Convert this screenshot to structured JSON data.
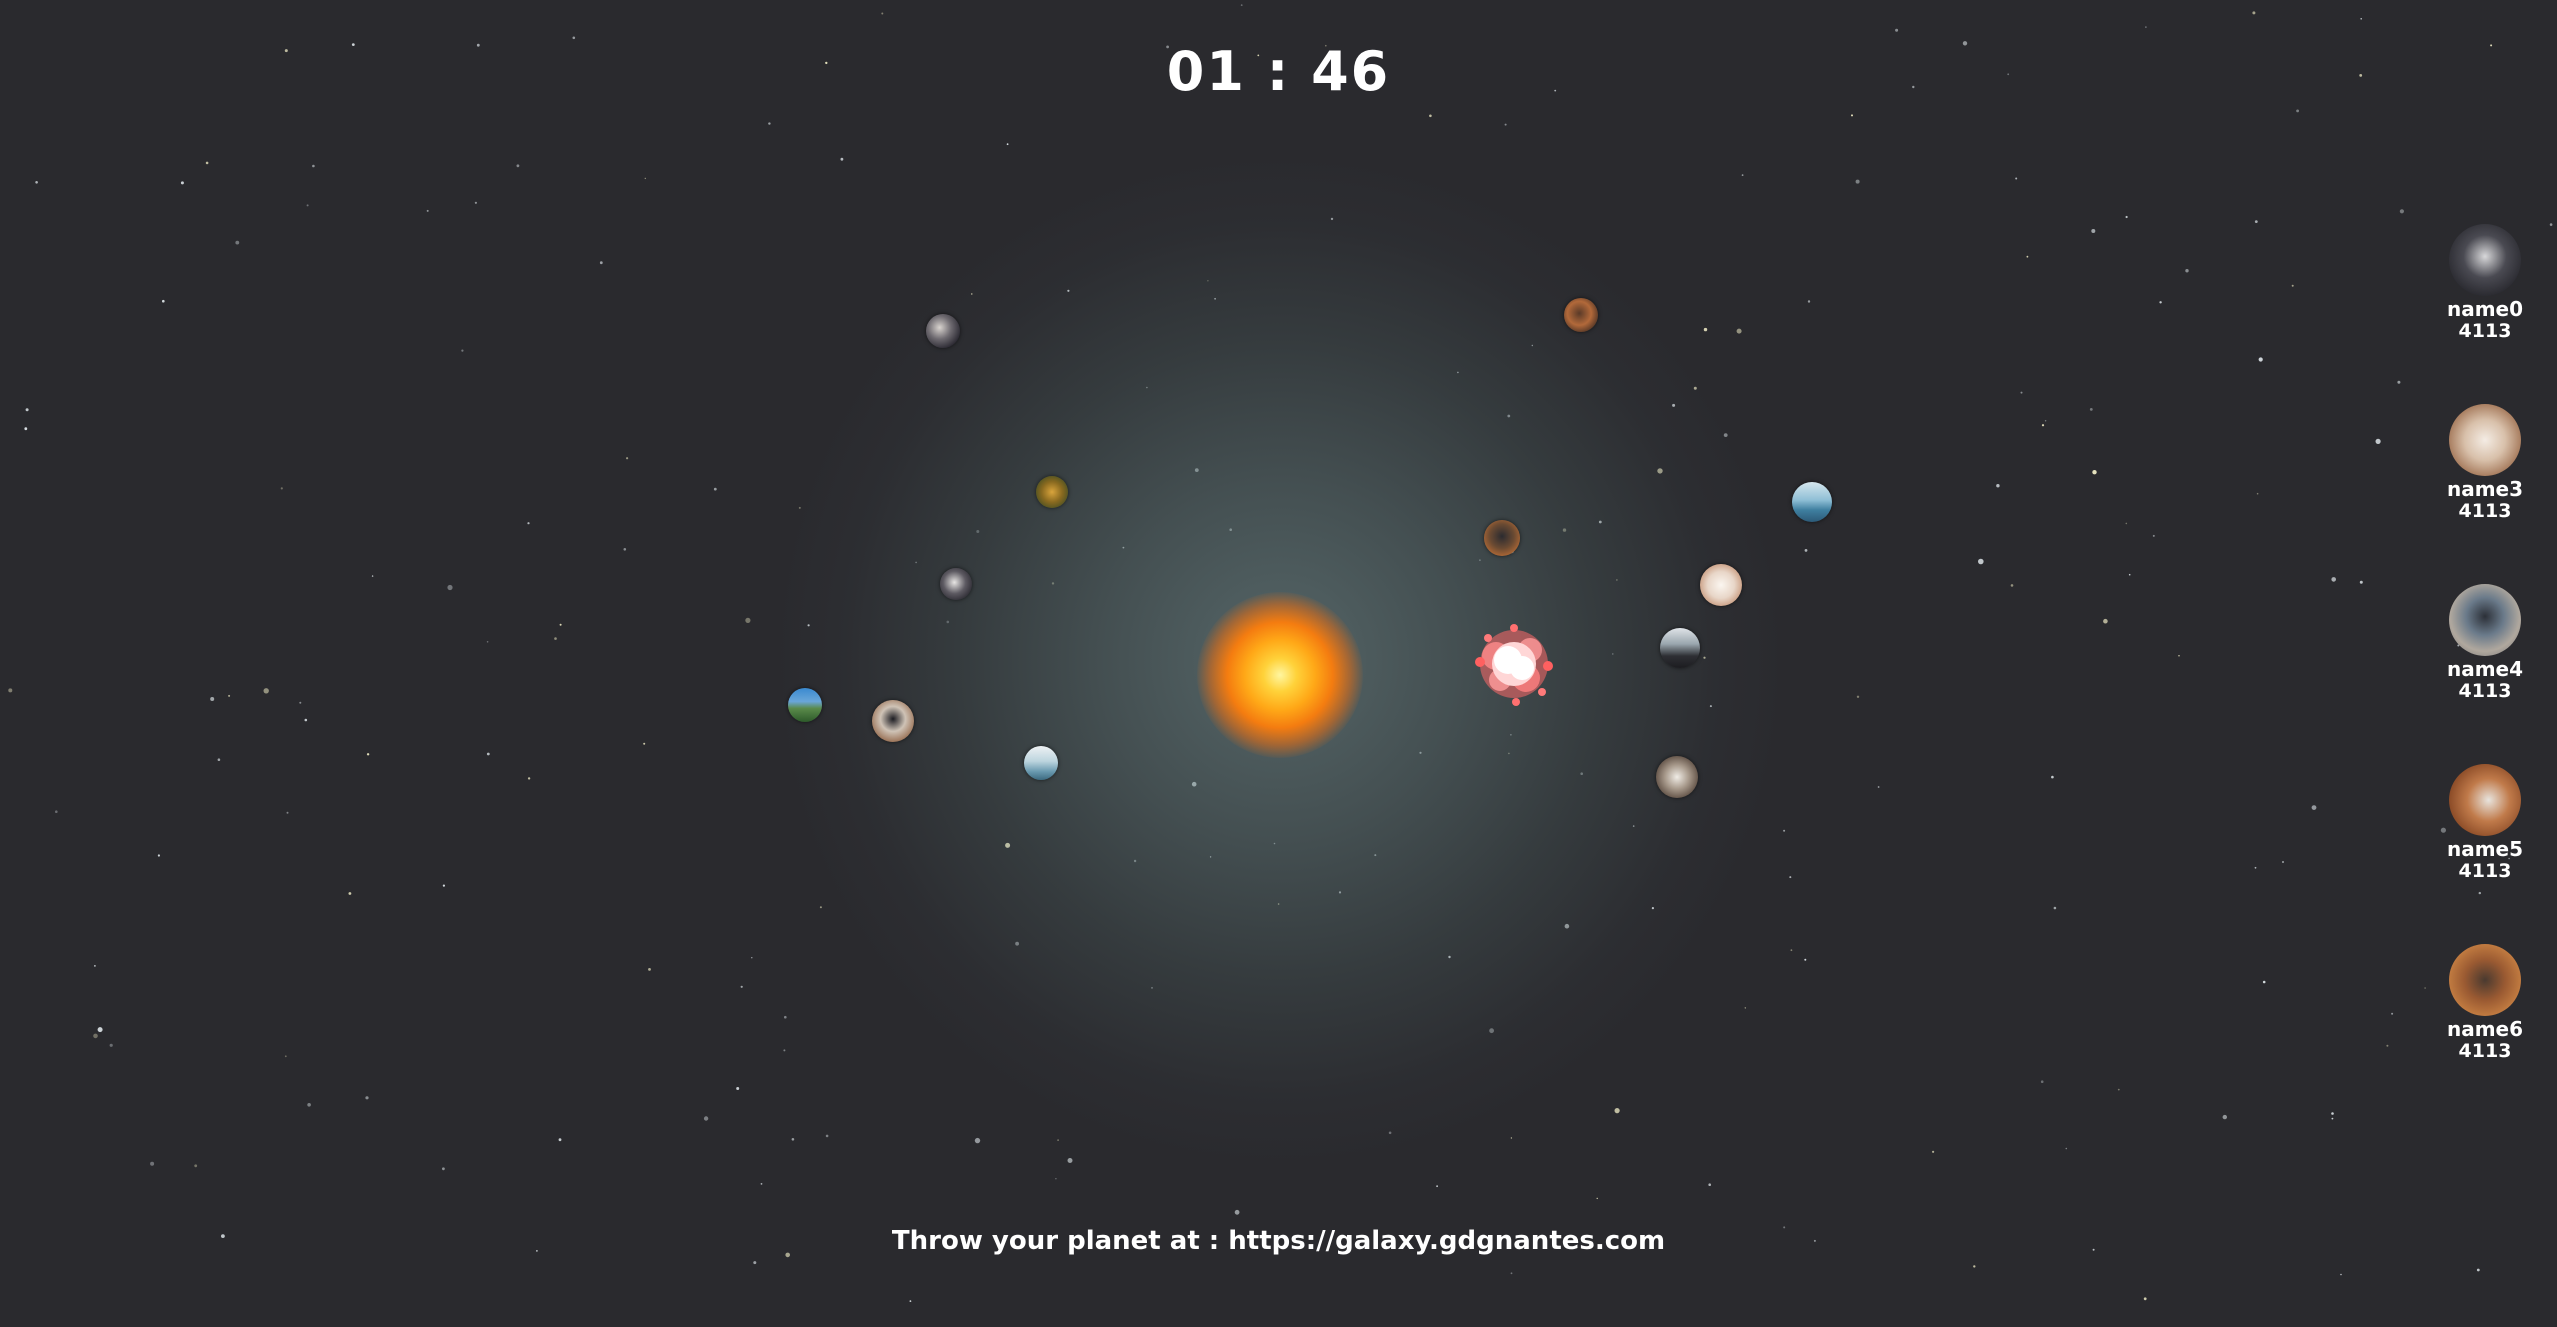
{
  "timer": {
    "text": "01 : 46"
  },
  "footer": {
    "text": "Throw your planet at : https://galaxy.gdgnantes.com"
  },
  "colors": {
    "background": "#2a2a2e",
    "sun_core": "#ffd23a",
    "sun_edge": "#f47c10",
    "text": "#ffffff"
  },
  "players": [
    {
      "name": "name0",
      "score": "4113"
    },
    {
      "name": "name3",
      "score": "4113"
    },
    {
      "name": "name4",
      "score": "4113"
    },
    {
      "name": "name5",
      "score": "4113"
    },
    {
      "name": "name6",
      "score": "4113"
    }
  ]
}
